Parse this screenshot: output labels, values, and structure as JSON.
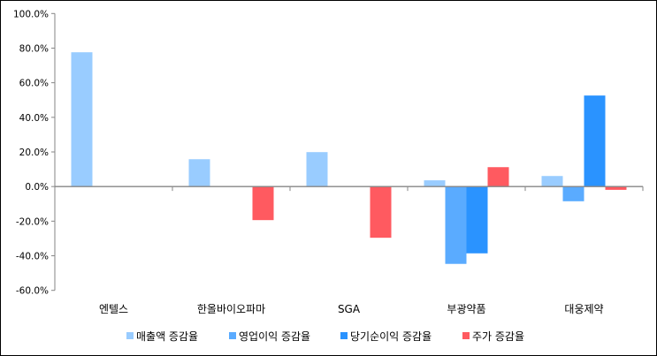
{
  "chart_data": {
    "type": "bar",
    "title": "",
    "xlabel": "",
    "ylabel": "",
    "ylim": [
      -60,
      100
    ],
    "yticks": [
      "100.0%",
      "80.0%",
      "60.0%",
      "40.0%",
      "20.0%",
      "0.0%",
      "-20.0%",
      "-40.0%",
      "-60.0%"
    ],
    "ytick_values": [
      100,
      80,
      60,
      40,
      20,
      0,
      -20,
      -40,
      -60
    ],
    "grid": false,
    "legend_position": "bottom",
    "categories": [
      "엔텔스",
      "한올바이오파마",
      "SGA",
      "부광약품",
      "대웅제약"
    ],
    "series": [
      {
        "name": "매출액 증감율",
        "color": "#99ccff",
        "values": [
          77.6,
          15.8,
          19.9,
          3.6,
          6.1
        ]
      },
      {
        "name": "영업이익 증감율",
        "color": "#5aabff",
        "values": [
          null,
          null,
          null,
          -44.7,
          -8.5
        ]
      },
      {
        "name": "당기순이익 증감율",
        "color": "#2a93ff",
        "values": [
          null,
          null,
          null,
          -38.6,
          52.6
        ]
      },
      {
        "name": "주가 증감율",
        "color": "#ff5a60",
        "values": [
          null,
          -19.4,
          -29.6,
          11.2,
          -1.9
        ]
      }
    ]
  }
}
